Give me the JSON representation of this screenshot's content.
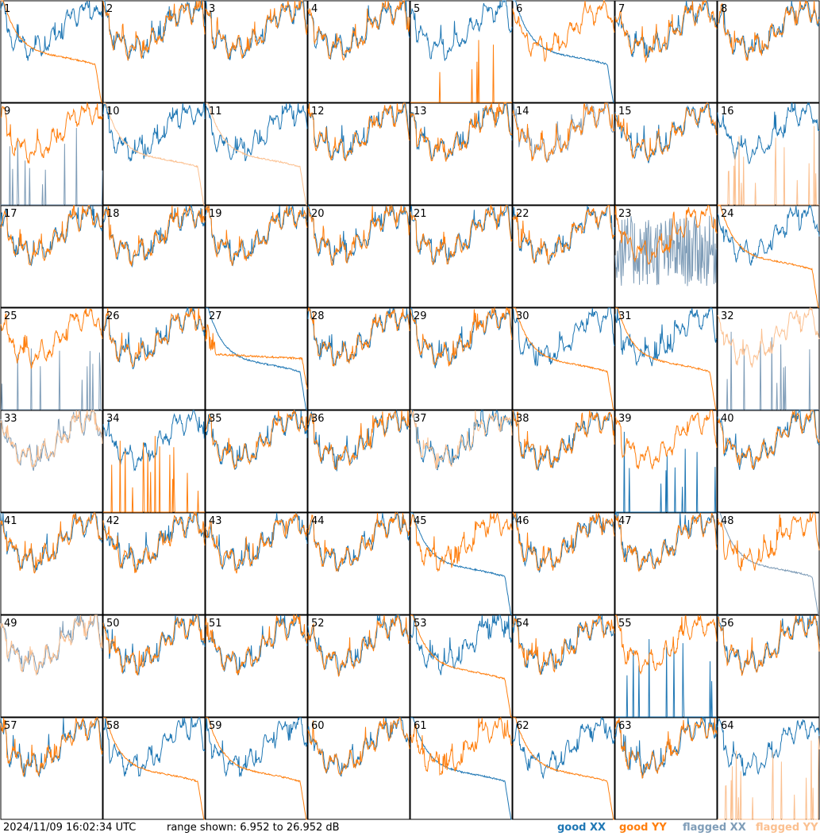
{
  "footer": {
    "timestamp": "2024/11/09 16:02:34 UTC",
    "range_text": "range shown: 6.952 to 26.952 dB"
  },
  "legend": [
    {
      "label": "good XX",
      "color": "#1f77b4"
    },
    {
      "label": "good YY",
      "color": "#ff7f0e"
    },
    {
      "label": "flagged XX",
      "color": "#7f9db8"
    },
    {
      "label": "flagged YY",
      "color": "#fbc090"
    }
  ],
  "chart_data": {
    "type": "line",
    "grid": "8x8 small multiples",
    "ylim_db": [
      6.952,
      26.952
    ],
    "axes_labels": "none",
    "panels": [
      {
        "id": "1",
        "xx": "good",
        "yy": "good",
        "xx_shape": "normal",
        "yy_shape": "decay"
      },
      {
        "id": "2",
        "xx": "good",
        "yy": "good",
        "xx_shape": "normal",
        "yy_shape": "normal"
      },
      {
        "id": "3",
        "xx": "good",
        "yy": "good",
        "xx_shape": "normal",
        "yy_shape": "normal"
      },
      {
        "id": "4",
        "xx": "good",
        "yy": "good",
        "xx_shape": "normal",
        "yy_shape": "normal"
      },
      {
        "id": "5",
        "xx": "good",
        "yy": "good",
        "xx_shape": "normal",
        "yy_shape": "spikes"
      },
      {
        "id": "6",
        "xx": "good",
        "yy": "good",
        "xx_shape": "decay",
        "yy_shape": "normal"
      },
      {
        "id": "7",
        "xx": "good",
        "yy": "good",
        "xx_shape": "normal",
        "yy_shape": "normal"
      },
      {
        "id": "8",
        "xx": "good",
        "yy": "good",
        "xx_shape": "normal",
        "yy_shape": "normal"
      },
      {
        "id": "9",
        "xx": "flagged",
        "yy": "good",
        "xx_shape": "spikes",
        "yy_shape": "normal"
      },
      {
        "id": "10",
        "xx": "good",
        "yy": "flagged",
        "xx_shape": "normal",
        "yy_shape": "decay"
      },
      {
        "id": "11",
        "xx": "good",
        "yy": "flagged",
        "xx_shape": "normal",
        "yy_shape": "decay"
      },
      {
        "id": "12",
        "xx": "good",
        "yy": "good",
        "xx_shape": "normal",
        "yy_shape": "normal"
      },
      {
        "id": "13",
        "xx": "good",
        "yy": "good",
        "xx_shape": "normal",
        "yy_shape": "normal"
      },
      {
        "id": "14",
        "xx": "flagged",
        "yy": "good",
        "xx_shape": "normal",
        "yy_shape": "normal"
      },
      {
        "id": "15",
        "xx": "good",
        "yy": "good",
        "xx_shape": "normal",
        "yy_shape": "normal"
      },
      {
        "id": "16",
        "xx": "good",
        "yy": "flagged",
        "xx_shape": "normal",
        "yy_shape": "spikes"
      },
      {
        "id": "17",
        "xx": "good",
        "yy": "good",
        "xx_shape": "normal",
        "yy_shape": "normal"
      },
      {
        "id": "18",
        "xx": "good",
        "yy": "good",
        "xx_shape": "normal",
        "yy_shape": "normal"
      },
      {
        "id": "19",
        "xx": "good",
        "yy": "good",
        "xx_shape": "normal",
        "yy_shape": "normal"
      },
      {
        "id": "20",
        "xx": "good",
        "yy": "good",
        "xx_shape": "normal",
        "yy_shape": "normal"
      },
      {
        "id": "21",
        "xx": "good",
        "yy": "good",
        "xx_shape": "normal",
        "yy_shape": "normal"
      },
      {
        "id": "22",
        "xx": "good",
        "yy": "good",
        "xx_shape": "normal",
        "yy_shape": "normal"
      },
      {
        "id": "23",
        "xx": "flagged",
        "yy": "good",
        "xx_shape": "noisy",
        "yy_shape": "normal"
      },
      {
        "id": "24",
        "xx": "good",
        "yy": "good",
        "xx_shape": "normal",
        "yy_shape": "decay"
      },
      {
        "id": "25",
        "xx": "flagged",
        "yy": "good",
        "xx_shape": "spikes",
        "yy_shape": "normal"
      },
      {
        "id": "26",
        "xx": "good",
        "yy": "good",
        "xx_shape": "normal",
        "yy_shape": "normal"
      },
      {
        "id": "27",
        "xx": "good",
        "yy": "good",
        "xx_shape": "decay",
        "yy_shape": "flat"
      },
      {
        "id": "28",
        "xx": "good",
        "yy": "good",
        "xx_shape": "normal",
        "yy_shape": "normal"
      },
      {
        "id": "29",
        "xx": "good",
        "yy": "good",
        "xx_shape": "normal",
        "yy_shape": "normal"
      },
      {
        "id": "30",
        "xx": "good",
        "yy": "good",
        "xx_shape": "normal",
        "yy_shape": "decay"
      },
      {
        "id": "31",
        "xx": "good",
        "yy": "good",
        "xx_shape": "normal",
        "yy_shape": "decay"
      },
      {
        "id": "32",
        "xx": "flagged",
        "yy": "flagged",
        "xx_shape": "spikes",
        "yy_shape": "normal"
      },
      {
        "id": "33",
        "xx": "flagged",
        "yy": "flagged",
        "xx_shape": "normal",
        "yy_shape": "normal"
      },
      {
        "id": "34",
        "xx": "good",
        "yy": "good",
        "xx_shape": "normal",
        "yy_shape": "spikes"
      },
      {
        "id": "35",
        "xx": "good",
        "yy": "good",
        "xx_shape": "normal",
        "yy_shape": "normal"
      },
      {
        "id": "36",
        "xx": "good",
        "yy": "good",
        "xx_shape": "normal",
        "yy_shape": "normal"
      },
      {
        "id": "37",
        "xx": "good",
        "yy": "flagged",
        "xx_shape": "normal",
        "yy_shape": "normal"
      },
      {
        "id": "38",
        "xx": "good",
        "yy": "good",
        "xx_shape": "normal",
        "yy_shape": "normal"
      },
      {
        "id": "39",
        "xx": "good",
        "yy": "good",
        "xx_shape": "spikes",
        "yy_shape": "normal"
      },
      {
        "id": "40",
        "xx": "good",
        "yy": "good",
        "xx_shape": "normal",
        "yy_shape": "normal"
      },
      {
        "id": "41",
        "xx": "good",
        "yy": "good",
        "xx_shape": "normal",
        "yy_shape": "normal"
      },
      {
        "id": "42",
        "xx": "good",
        "yy": "good",
        "xx_shape": "normal",
        "yy_shape": "normal"
      },
      {
        "id": "43",
        "xx": "good",
        "yy": "good",
        "xx_shape": "normal",
        "yy_shape": "normal"
      },
      {
        "id": "44",
        "xx": "good",
        "yy": "good",
        "xx_shape": "normal",
        "yy_shape": "normal"
      },
      {
        "id": "45",
        "xx": "good",
        "yy": "good",
        "xx_shape": "decay",
        "yy_shape": "normal"
      },
      {
        "id": "46",
        "xx": "good",
        "yy": "good",
        "xx_shape": "normal",
        "yy_shape": "normal"
      },
      {
        "id": "47",
        "xx": "good",
        "yy": "good",
        "xx_shape": "normal",
        "yy_shape": "normal"
      },
      {
        "id": "48",
        "xx": "flagged",
        "yy": "good",
        "xx_shape": "decay",
        "yy_shape": "normal"
      },
      {
        "id": "49",
        "xx": "flagged",
        "yy": "flagged",
        "xx_shape": "normal",
        "yy_shape": "normal"
      },
      {
        "id": "50",
        "xx": "good",
        "yy": "good",
        "xx_shape": "normal",
        "yy_shape": "normal"
      },
      {
        "id": "51",
        "xx": "good",
        "yy": "good",
        "xx_shape": "normal",
        "yy_shape": "normal"
      },
      {
        "id": "52",
        "xx": "good",
        "yy": "good",
        "xx_shape": "normal",
        "yy_shape": "normal"
      },
      {
        "id": "53",
        "xx": "good",
        "yy": "good",
        "xx_shape": "normal",
        "yy_shape": "decay"
      },
      {
        "id": "54",
        "xx": "good",
        "yy": "good",
        "xx_shape": "normal",
        "yy_shape": "normal"
      },
      {
        "id": "55",
        "xx": "good",
        "yy": "good",
        "xx_shape": "spikes",
        "yy_shape": "normal"
      },
      {
        "id": "56",
        "xx": "good",
        "yy": "good",
        "xx_shape": "normal",
        "yy_shape": "normal"
      },
      {
        "id": "57",
        "xx": "good",
        "yy": "good",
        "xx_shape": "normal",
        "yy_shape": "normal"
      },
      {
        "id": "58",
        "xx": "good",
        "yy": "good",
        "xx_shape": "normal",
        "yy_shape": "decay"
      },
      {
        "id": "59",
        "xx": "good",
        "yy": "good",
        "xx_shape": "normal",
        "yy_shape": "decay"
      },
      {
        "id": "60",
        "xx": "good",
        "yy": "good",
        "xx_shape": "normal",
        "yy_shape": "normal"
      },
      {
        "id": "61",
        "xx": "good",
        "yy": "good",
        "xx_shape": "decay",
        "yy_shape": "normal"
      },
      {
        "id": "62",
        "xx": "good",
        "yy": "good",
        "xx_shape": "normal",
        "yy_shape": "decay"
      },
      {
        "id": "63",
        "xx": "good",
        "yy": "good",
        "xx_shape": "normal",
        "yy_shape": "normal"
      },
      {
        "id": "64",
        "xx": "good",
        "yy": "flagged",
        "xx_shape": "normal",
        "yy_shape": "spikes"
      }
    ]
  }
}
